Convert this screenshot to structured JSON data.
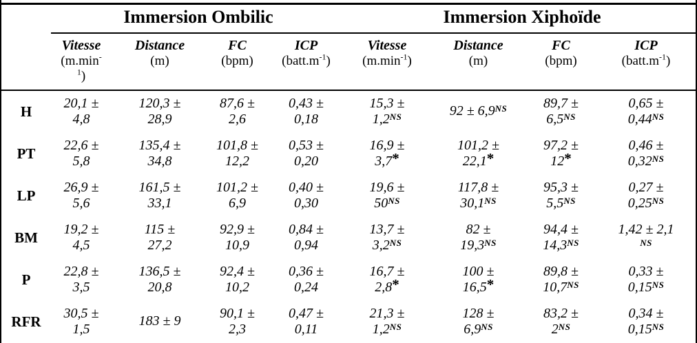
{
  "table": {
    "groups": [
      {
        "label": "Immersion Ombilic"
      },
      {
        "label": "Immersion Xiphoïde"
      }
    ],
    "columns": [
      {
        "title": "Vitesse",
        "unit_lines": [
          [
            {
              "t": "(m.min"
            },
            {
              "t": "-",
              "sup": true
            }
          ],
          [
            {
              "t": "1",
              "sup": true
            },
            {
              "t": ")"
            }
          ]
        ]
      },
      {
        "title": "Distance",
        "unit_lines": [
          [
            {
              "t": "(m)"
            }
          ]
        ]
      },
      {
        "title": "FC",
        "unit_lines": [
          [
            {
              "t": "(bpm)"
            }
          ]
        ]
      },
      {
        "title": "ICP",
        "unit_lines": [
          [
            {
              "t": "(batt.m"
            },
            {
              "t": "-1",
              "sup": true
            },
            {
              "t": ")"
            }
          ]
        ]
      },
      {
        "title": "Vitesse",
        "unit_lines": [
          [
            {
              "t": "(m.min"
            },
            {
              "t": "-1",
              "sup": true
            },
            {
              "t": ")"
            }
          ]
        ]
      },
      {
        "title": "Distance",
        "unit_lines": [
          [
            {
              "t": "(m)"
            }
          ]
        ]
      },
      {
        "title": "FC",
        "unit_lines": [
          [
            {
              "t": "(bpm)"
            }
          ]
        ]
      },
      {
        "title": "ICP",
        "unit_lines": [
          [
            {
              "t": "(batt.m"
            },
            {
              "t": "-1",
              "sup": true
            },
            {
              "t": ")"
            }
          ]
        ]
      }
    ],
    "rows": [
      {
        "label": "H",
        "cells": [
          {
            "top": "20,1 ±",
            "bottom": "4,8"
          },
          {
            "top": "120,3 ±",
            "bottom": "28,9"
          },
          {
            "top": "87,6 ±",
            "bottom": "2,6"
          },
          {
            "top": "0,43 ±",
            "bottom": "0,18"
          },
          {
            "top": "15,3 ±",
            "bottom": "1,2",
            "sup": "NS"
          },
          {
            "top": "92 ± 6,9",
            "sup": "NS",
            "single": true
          },
          {
            "top": "89,7 ±",
            "bottom": "6,5",
            "sup": "NS"
          },
          {
            "top": "0,65 ±",
            "bottom": "0,44",
            "sup": "NS"
          }
        ]
      },
      {
        "label": "PT",
        "cells": [
          {
            "top": "22,6 ±",
            "bottom": "5,8"
          },
          {
            "top": "135,4 ±",
            "bottom": "34,8"
          },
          {
            "top": "101,8 ±",
            "bottom": "12,2"
          },
          {
            "top": "0,53 ±",
            "bottom": "0,20"
          },
          {
            "top": "16,9 ±",
            "bottom": "3,7",
            "sup": "*"
          },
          {
            "top": "101,2 ±",
            "bottom": "22,1",
            "sup": "*"
          },
          {
            "top": "97,2 ±",
            "bottom": "12",
            "sup": "*"
          },
          {
            "top": "0,46 ±",
            "bottom": "0,32",
            "sup": "NS"
          }
        ]
      },
      {
        "label": "LP",
        "cells": [
          {
            "top": "26,9 ±",
            "bottom": "5,6"
          },
          {
            "top": "161,5 ±",
            "bottom": "33,1"
          },
          {
            "top": "101,2 ±",
            "bottom": "6,9"
          },
          {
            "top": "0,40 ±",
            "bottom": "0,30"
          },
          {
            "top": "19,6 ±",
            "bottom": "50",
            "sup": "NS"
          },
          {
            "top": "117,8 ±",
            "bottom": "30,1",
            "sup": "NS"
          },
          {
            "top": "95,3 ±",
            "bottom": "5,5",
            "sup": "NS"
          },
          {
            "top": "0,27 ±",
            "bottom": "0,25",
            "sup": "NS"
          }
        ]
      },
      {
        "label": "BM",
        "cells": [
          {
            "top": "19,2 ±",
            "bottom": "4,5"
          },
          {
            "top": "115 ±",
            "bottom": "27,2"
          },
          {
            "top": "92,9 ±",
            "bottom": "10,9"
          },
          {
            "top": "0,84 ±",
            "bottom": "0,94"
          },
          {
            "top": "13,7 ±",
            "bottom": "3,2",
            "sup": "NS"
          },
          {
            "top": "82 ±",
            "bottom": "19,3",
            "sup": "NS"
          },
          {
            "top": "94,4 ±",
            "bottom": "14,3",
            "sup": "NS"
          },
          {
            "top": "1,42 ± 2,1",
            "bottom": "",
            "sup": "NS"
          }
        ]
      },
      {
        "label": "P",
        "cells": [
          {
            "top": "22,8 ±",
            "bottom": "3,5"
          },
          {
            "top": "136,5 ±",
            "bottom": "20,8"
          },
          {
            "top": "92,4 ±",
            "bottom": "10,2"
          },
          {
            "top": "0,36 ±",
            "bottom": "0,24"
          },
          {
            "top": "16,7 ±",
            "bottom": "2,8",
            "sup": "*"
          },
          {
            "top": "100 ±",
            "bottom": "16,5",
            "sup": "*"
          },
          {
            "top": "89,8 ±",
            "bottom": "10,7",
            "sup": "NS"
          },
          {
            "top": "0,33 ±",
            "bottom": "0,15",
            "sup": "NS"
          }
        ]
      },
      {
        "label": "RFR",
        "cells": [
          {
            "top": "30,5 ±",
            "bottom": "1,5"
          },
          {
            "top": "183 ± 9",
            "single": true
          },
          {
            "top": "90,1 ±",
            "bottom": "2,3"
          },
          {
            "top": "0,47 ±",
            "bottom": "0,11"
          },
          {
            "top": "21,3 ±",
            "bottom": "1,2",
            "sup": "NS"
          },
          {
            "top": "128 ±",
            "bottom": "6,9",
            "sup": "NS"
          },
          {
            "top": "83,2 ±",
            "bottom": "2",
            "sup": "NS"
          },
          {
            "top": "0,34 ±",
            "bottom": "0,15",
            "sup": "NS"
          }
        ]
      }
    ]
  }
}
